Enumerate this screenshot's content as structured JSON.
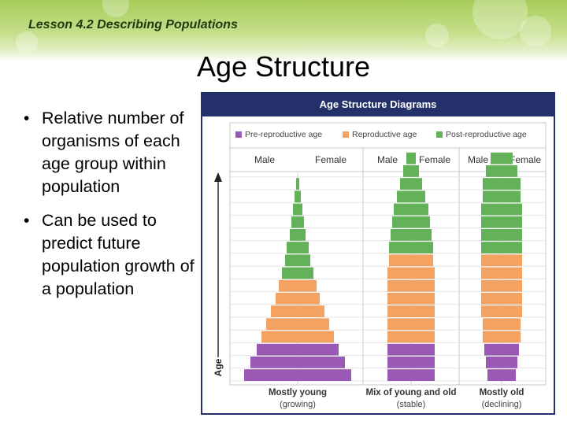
{
  "header": {
    "lesson": "Lesson 4.2 Describing Populations"
  },
  "slide": {
    "title": "Age Structure",
    "bullets": [
      "Relative number of organisms of each age group within population",
      "Can be used to predict future population growth of a population"
    ]
  },
  "chart_data": {
    "type": "bar",
    "title": "Age Structure Diagrams",
    "ylabel": "Age",
    "legend": [
      "Pre-reproductive age",
      "Reproductive age",
      "Post-reproductive age"
    ],
    "legend_placement": "top",
    "colors": {
      "Pre-reproductive age": "#9b59b6",
      "Reproductive age": "#f3a262",
      "Post-reproductive age": "#63b25a",
      "header": "#24306a"
    },
    "sex_labels": [
      "Male",
      "Female"
    ],
    "pyramids": [
      {
        "name": "Mostly young",
        "caption": "(growing)",
        "bands_bottom_to_top": [
          "Pre-reproductive age",
          "Pre-reproductive age",
          "Pre-reproductive age",
          "Reproductive age",
          "Reproductive age",
          "Reproductive age",
          "Reproductive age",
          "Reproductive age",
          "Post-reproductive age",
          "Post-reproductive age",
          "Post-reproductive age",
          "Post-reproductive age",
          "Post-reproductive age",
          "Post-reproductive age",
          "Post-reproductive age",
          "Post-reproductive age"
        ],
        "half_widths_bottom_to_top": [
          34,
          30,
          26,
          23,
          20,
          17,
          14,
          12,
          10,
          8,
          7,
          5,
          4,
          3,
          2,
          1
        ]
      },
      {
        "name": "Mix of young and old",
        "caption": "(stable)",
        "bands_bottom_to_top": [
          "Pre-reproductive age",
          "Pre-reproductive age",
          "Pre-reproductive age",
          "Reproductive age",
          "Reproductive age",
          "Reproductive age",
          "Reproductive age",
          "Reproductive age",
          "Reproductive age",
          "Reproductive age",
          "Post-reproductive age",
          "Post-reproductive age",
          "Post-reproductive age",
          "Post-reproductive age",
          "Post-reproductive age",
          "Post-reproductive age",
          "Post-reproductive age",
          "Post-reproductive age"
        ],
        "half_widths_bottom_to_top": [
          15,
          15,
          15,
          15,
          15,
          15,
          15,
          15,
          15,
          14,
          14,
          13,
          12,
          11,
          9,
          7,
          5,
          3
        ]
      },
      {
        "name": "Mostly old",
        "caption": "(declining)",
        "bands_bottom_to_top": [
          "Pre-reproductive age",
          "Pre-reproductive age",
          "Pre-reproductive age",
          "Reproductive age",
          "Reproductive age",
          "Reproductive age",
          "Reproductive age",
          "Reproductive age",
          "Reproductive age",
          "Reproductive age",
          "Post-reproductive age",
          "Post-reproductive age",
          "Post-reproductive age",
          "Post-reproductive age",
          "Post-reproductive age",
          "Post-reproductive age",
          "Post-reproductive age",
          "Post-reproductive age"
        ],
        "half_widths_bottom_to_top": [
          9,
          10,
          11,
          12,
          12,
          13,
          13,
          13,
          13,
          13,
          13,
          13,
          13,
          13,
          12,
          12,
          10,
          7
        ]
      }
    ]
  }
}
